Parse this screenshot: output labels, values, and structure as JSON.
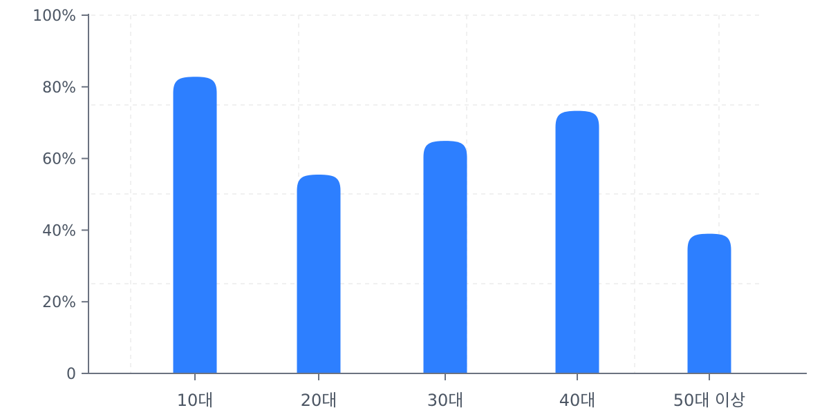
{
  "chart_data": {
    "type": "bar",
    "categories": [
      "10대",
      "20대",
      "30대",
      "40대",
      "50대 이상"
    ],
    "values": [
      82.8,
      55.5,
      64.9,
      73.3,
      39.0
    ],
    "ylim": [
      0,
      100
    ],
    "y_ticks": [
      0,
      20,
      40,
      60,
      80,
      100
    ],
    "y_tick_labels": [
      "0",
      "20%",
      "40%",
      "60%",
      "80%",
      "100%"
    ],
    "title": "",
    "xlabel": "",
    "ylabel": "",
    "grid": true,
    "bar_color": "#2d7fff",
    "axis_color": "#6b7280",
    "grid_color": "#ececec",
    "label_color": "#4b5563"
  }
}
